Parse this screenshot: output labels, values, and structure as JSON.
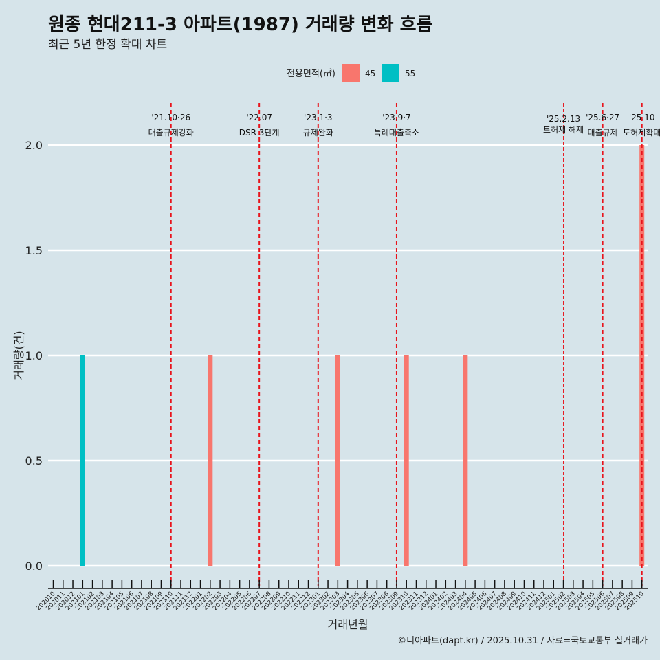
{
  "chart_data": {
    "type": "bar",
    "title": "원종 현대211-3 아파트(1987) 거래량 변화 흐름",
    "subtitle": "최근 5년 한정 확대 차트",
    "xlabel": "거래년월",
    "ylabel": "거래량(건)",
    "ylim": [
      0,
      2
    ],
    "yticks": [
      "0.0",
      "0.5",
      "1.0",
      "1.5",
      "2.0"
    ],
    "legend": {
      "title": "전용면적(㎡)",
      "position": "top",
      "items": [
        {
          "label": "45",
          "color": "#f8766d"
        },
        {
          "label": "55",
          "color": "#00bfc4"
        }
      ]
    },
    "categories": [
      "202010",
      "202011",
      "202012",
      "202101",
      "202102",
      "202103",
      "202104",
      "202105",
      "202106",
      "202107",
      "202108",
      "202109",
      "202110",
      "202111",
      "202112",
      "202201",
      "202202",
      "202203",
      "202204",
      "202205",
      "202206",
      "202207",
      "202208",
      "202209",
      "202210",
      "202211",
      "202212",
      "202301",
      "202302",
      "202303",
      "202304",
      "202305",
      "202306",
      "202307",
      "202308",
      "202309",
      "202310",
      "202311",
      "202312",
      "202401",
      "202402",
      "202403",
      "202404",
      "202405",
      "202406",
      "202407",
      "202408",
      "202409",
      "202410",
      "202411",
      "202412",
      "202501",
      "202502",
      "202503",
      "202504",
      "202505",
      "202506",
      "202507",
      "202508",
      "202509",
      "202510"
    ],
    "series": [
      {
        "name": "45",
        "color": "#f8766d",
        "points": [
          {
            "x": "202202",
            "y": 1
          },
          {
            "x": "202303",
            "y": 1
          },
          {
            "x": "202310",
            "y": 1
          },
          {
            "x": "202404",
            "y": 1
          },
          {
            "x": "202510",
            "y": 2
          }
        ]
      },
      {
        "name": "55",
        "color": "#00bfc4",
        "points": [
          {
            "x": "202101",
            "y": 1
          }
        ]
      }
    ],
    "events": [
      {
        "at": 12.0,
        "line1": "'21.10·26",
        "line2": "대출규제강화",
        "style": "bold"
      },
      {
        "at": 21.0,
        "line1": "'22.07",
        "line2": "DSR 3단계",
        "style": "bold"
      },
      {
        "at": 27.0,
        "line1": "'23.1·3",
        "line2": "규제완화",
        "style": "bold"
      },
      {
        "at": 35.0,
        "line1": "'23.9·7",
        "line2": "특례대출축소",
        "style": "bold"
      },
      {
        "at": 52.0,
        "line1": "'25.2.13",
        "line2": "토허제 해제",
        "style": "thin"
      },
      {
        "at": 56.0,
        "line1": "'25.6·27",
        "line2": "대출규제",
        "style": "bold"
      },
      {
        "at": 60.0,
        "line1": "'25.10",
        "line2": "토허제확대",
        "style": "bold"
      }
    ],
    "caption": "©디아파트(dapt.kr) / 2025.10.31 / 자료=국토교통부 실거래가"
  }
}
